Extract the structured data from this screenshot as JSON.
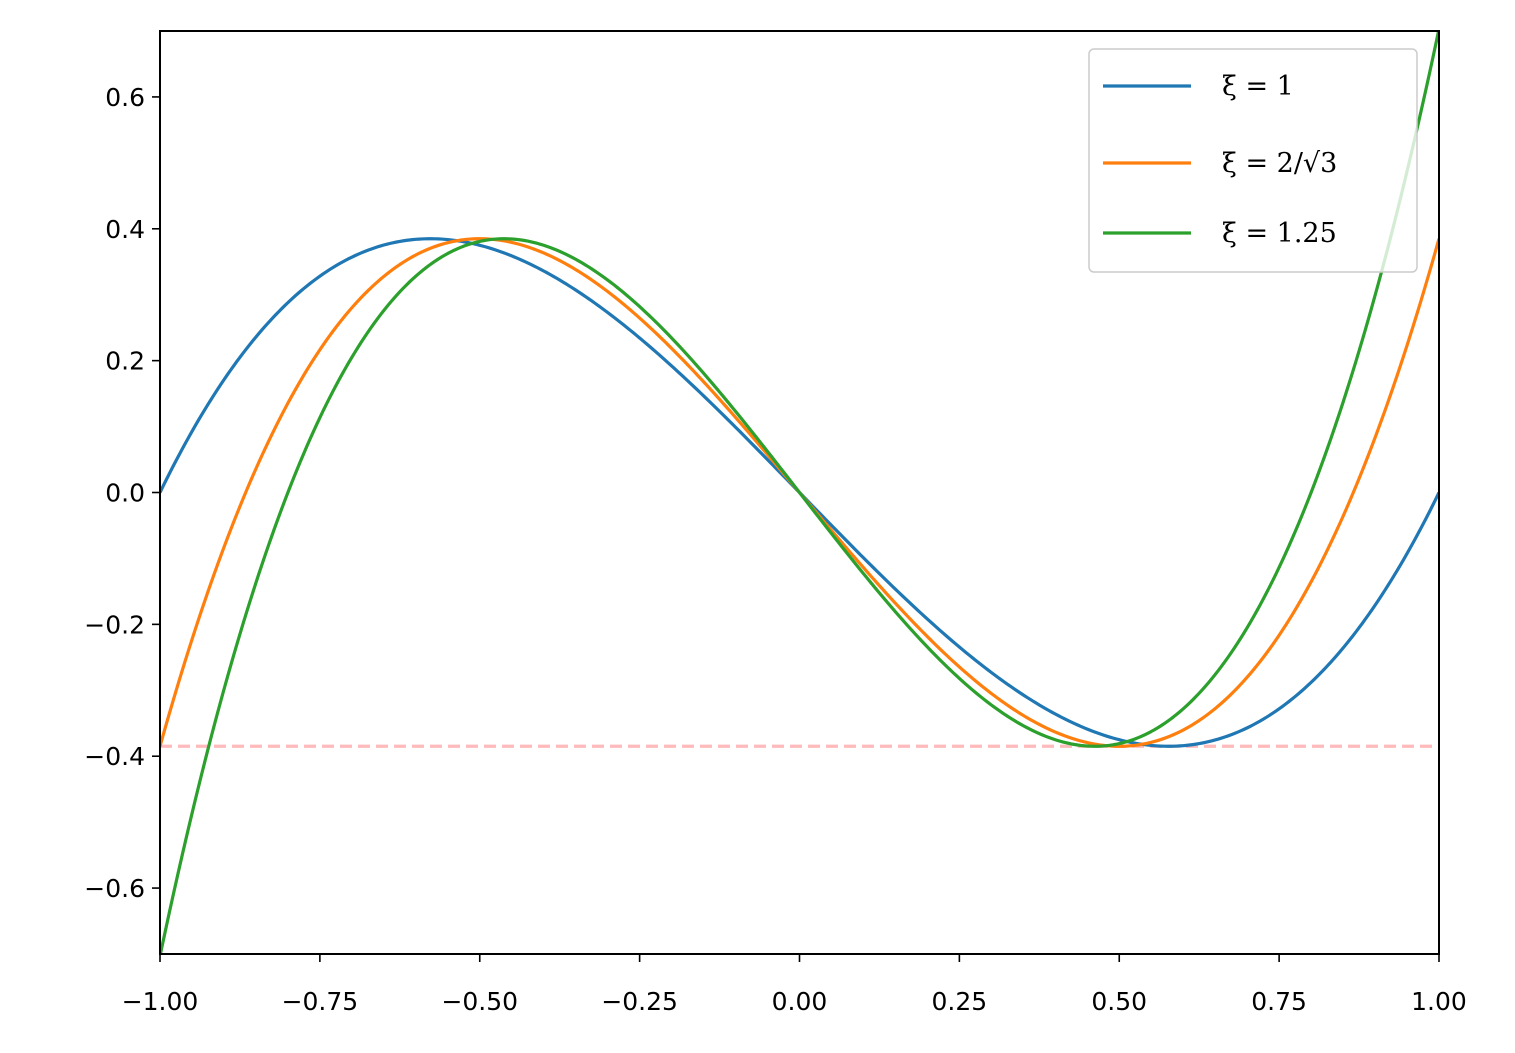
{
  "chart_data": {
    "type": "line",
    "title": "",
    "xlabel": "",
    "ylabel": "",
    "xlim": [
      -1.0,
      1.0
    ],
    "ylim": [
      -0.7,
      0.7
    ],
    "grid": false,
    "legend_position": "top-right",
    "x_ticks": [
      -1.0,
      -0.75,
      -0.5,
      -0.25,
      0.0,
      0.25,
      0.5,
      0.75,
      1.0
    ],
    "x_tick_labels": [
      "−1.00",
      "−0.75",
      "−0.50",
      "−0.25",
      "0.00",
      "0.25",
      "0.50",
      "0.75",
      "1.00"
    ],
    "y_ticks": [
      -0.6,
      -0.4,
      -0.2,
      0.0,
      0.2,
      0.4,
      0.6
    ],
    "y_tick_labels": [
      "−0.6",
      "−0.4",
      "−0.2",
      "0.0",
      "0.2",
      "0.4",
      "0.6"
    ],
    "series": [
      {
        "name": "ξ = 1",
        "legend_label": "ξ = 1",
        "xi": 1.0,
        "function": "(xi*x)^3 - xi*x",
        "color": "#1f77b4"
      },
      {
        "name": "ξ = 2/√3",
        "legend_label": "ξ = 2/√3",
        "xi": 1.1547,
        "function": "(xi*x)^3 - xi*x",
        "color": "#ff7f0e"
      },
      {
        "name": "ξ = 1.25",
        "legend_label": "ξ = 1.25",
        "xi": 1.25,
        "function": "(xi*x)^3 - xi*x",
        "color": "#2ca02c"
      }
    ],
    "reference_line": {
      "type": "horizontal",
      "y": -0.3849,
      "style": "dashed",
      "color": "#ffbbbb"
    }
  }
}
